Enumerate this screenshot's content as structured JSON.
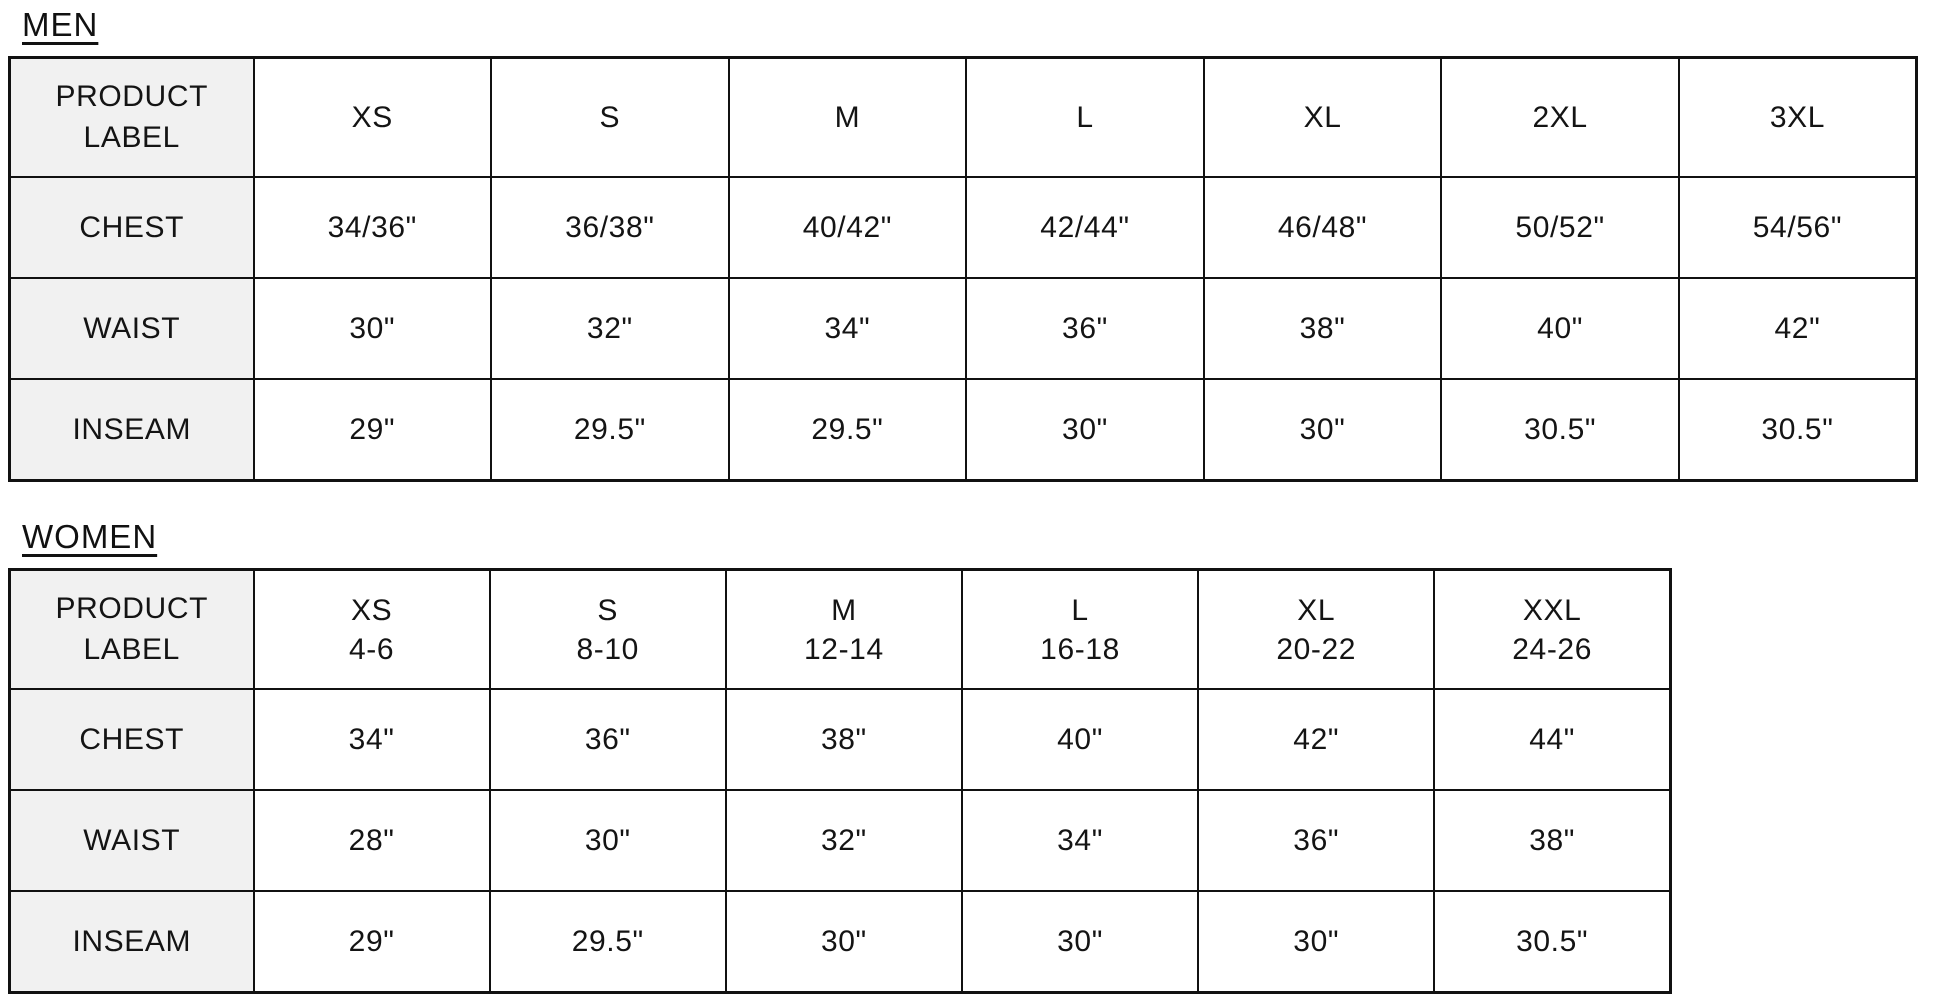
{
  "palette": {
    "background": "#ffffff",
    "border_color": "#111111",
    "label_cell_background": "#f1f1f1",
    "text_color": "#141414"
  },
  "men": {
    "title": "MEN",
    "corner": {
      "line1": "PRODUCT",
      "line2": "LABEL"
    },
    "sizes": [
      "XS",
      "S",
      "M",
      "L",
      "XL",
      "2XL",
      "3XL"
    ],
    "rows": [
      {
        "label": "CHEST",
        "values": [
          "34/36\"",
          "36/38\"",
          "40/42\"",
          "42/44\"",
          "46/48\"",
          "50/52\"",
          "54/56\""
        ]
      },
      {
        "label": "WAIST",
        "values": [
          "30\"",
          "32\"",
          "34\"",
          "36\"",
          "38\"",
          "40\"",
          "42\""
        ]
      },
      {
        "label": "INSEAM",
        "values": [
          "29\"",
          "29.5\"",
          "29.5\"",
          "30\"",
          "30\"",
          "30.5\"",
          "30.5\""
        ]
      }
    ]
  },
  "women": {
    "title": "WOMEN",
    "corner": {
      "line1": "PRODUCT",
      "line2": "LABEL"
    },
    "sizes": [
      {
        "label": "XS",
        "range": "4-6"
      },
      {
        "label": "S",
        "range": "8-10"
      },
      {
        "label": "M",
        "range": "12-14"
      },
      {
        "label": "L",
        "range": "16-18"
      },
      {
        "label": "XL",
        "range": "20-22"
      },
      {
        "label": "XXL",
        "range": "24-26"
      }
    ],
    "rows": [
      {
        "label": "CHEST",
        "values": [
          "34\"",
          "36\"",
          "38\"",
          "40\"",
          "42\"",
          "44\""
        ]
      },
      {
        "label": "WAIST",
        "values": [
          "28\"",
          "30\"",
          "32\"",
          "34\"",
          "36\"",
          "38\""
        ]
      },
      {
        "label": "INSEAM",
        "values": [
          "29\"",
          "29.5\"",
          "30\"",
          "30\"",
          "30\"",
          "30.5\""
        ]
      }
    ]
  }
}
